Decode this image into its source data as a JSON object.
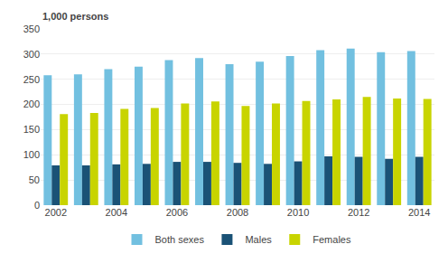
{
  "chart_data": {
    "type": "bar",
    "ylabel": "1,000 persons",
    "categories": [
      "2002",
      null,
      "2004",
      null,
      "2006",
      null,
      "2008",
      null,
      "2010",
      null,
      "2012",
      null,
      "2014"
    ],
    "series": [
      {
        "name": "Both sexes",
        "color": "#72c0e0",
        "values": [
          258,
          260,
          270,
          275,
          288,
          292,
          280,
          285,
          296,
          308,
          311,
          304,
          306
        ]
      },
      {
        "name": "Males",
        "color": "#1a5276",
        "values": [
          79,
          79,
          81,
          82,
          86,
          86,
          84,
          82,
          87,
          97,
          96,
          92,
          96
        ]
      },
      {
        "name": "Females",
        "color": "#c8d400",
        "values": [
          181,
          183,
          191,
          193,
          202,
          206,
          197,
          202,
          207,
          210,
          215,
          212,
          211
        ]
      }
    ],
    "ylim": [
      0,
      350
    ],
    "yticks": [
      0,
      50,
      100,
      150,
      200,
      250,
      300,
      350
    ],
    "grid": true,
    "legend": "bottom"
  }
}
